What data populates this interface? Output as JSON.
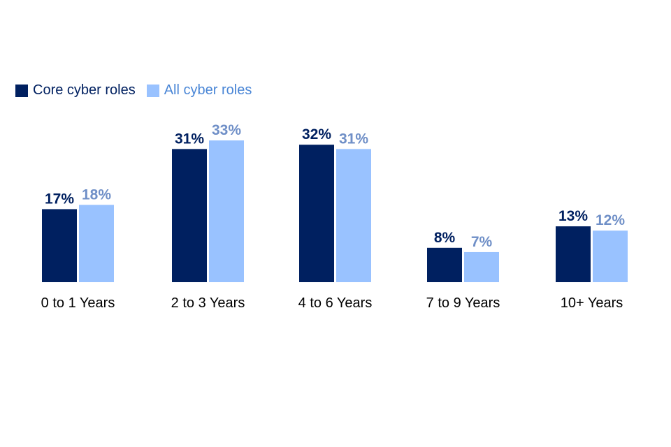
{
  "chart_data": {
    "type": "bar",
    "title": "",
    "xlabel": "",
    "ylabel": "",
    "ylim": [
      0,
      40
    ],
    "grid": false,
    "legend_position": "top-left",
    "categories": [
      "0 to 1 Years",
      "2 to 3 Years",
      "4 to 6 Years",
      "7 to 9 Years",
      "10+ Years"
    ],
    "series": [
      {
        "name": "Core cyber roles",
        "color": "#002060",
        "label_color": "#002060",
        "values": [
          17,
          31,
          32,
          8,
          13
        ],
        "labels": [
          "17%",
          "31%",
          "32%",
          "8%",
          "13%"
        ]
      },
      {
        "name": "All cyber roles",
        "color": "#99C2FF",
        "label_color": "#6F8FC7",
        "legend_text_color": "#4A86D6",
        "values": [
          18,
          33,
          31,
          7,
          12
        ],
        "labels": [
          "18%",
          "33%",
          "31%",
          "7%",
          "12%"
        ]
      }
    ]
  }
}
